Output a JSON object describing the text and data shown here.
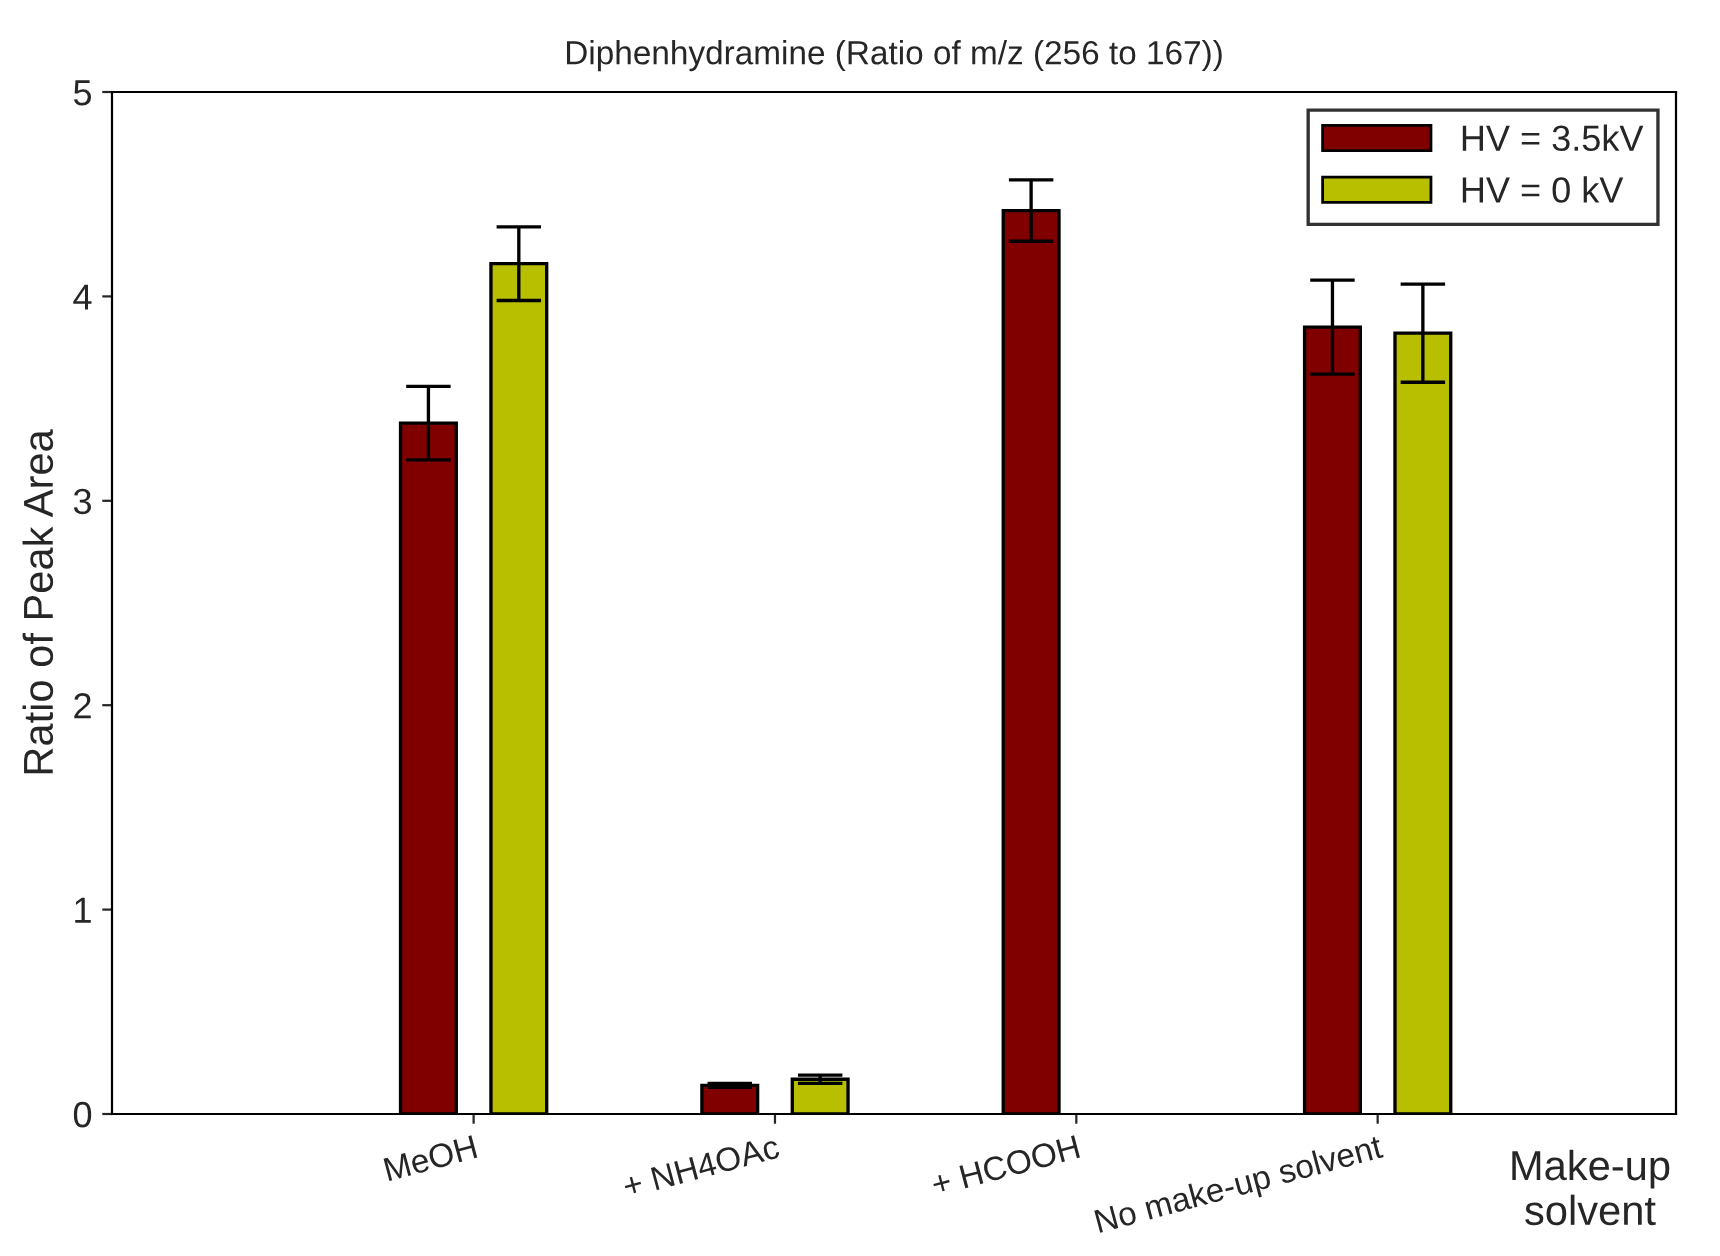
{
  "chart_data": {
    "type": "bar",
    "title": "Diphenhydramine (Ratio of m/z (256 to 167))",
    "xlabel": "Make-up solvent",
    "ylabel": "Ratio of Peak Area",
    "categories": [
      "MeOH",
      "+ NH4OAc",
      "+ HCOOH",
      "No make-up solvent"
    ],
    "series": [
      {
        "name": "HV = 3.5kV",
        "color": "#800000",
        "values": [
          3.38,
          0.14,
          4.42,
          3.85
        ],
        "errors": [
          0.18,
          0.01,
          0.15,
          0.23
        ]
      },
      {
        "name": "HV = 0 kV",
        "color": "#b8bf00",
        "values": [
          4.16,
          0.17,
          null,
          3.82
        ],
        "errors": [
          0.18,
          0.02,
          null,
          0.24
        ]
      }
    ],
    "ylim": [
      0,
      5
    ],
    "yticks": [
      0,
      1,
      2,
      3,
      4,
      5
    ],
    "grid": false,
    "legend": "top right"
  }
}
